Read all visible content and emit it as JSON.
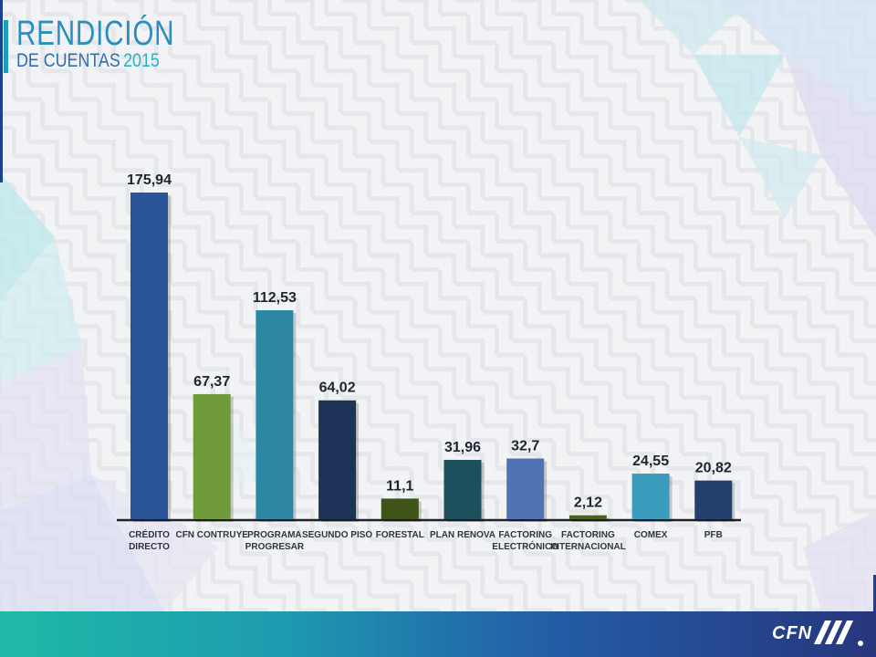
{
  "slide": {
    "title_line1": "RENDICIÓN",
    "title_line2a": "DE CUENTAS",
    "title_line2b": "2015"
  },
  "footer": {
    "logo_text": "CFN",
    "colors": [
      "#20b9a7",
      "#235ea7",
      "#27367d"
    ]
  },
  "chart_data": {
    "type": "bar",
    "categories": [
      "CRÉDITO DIRECTO",
      "CFN CONTRUYE",
      "PROGRAMA PROGRESAR",
      "SEGUNDO PISO",
      "FORESTAL",
      "PLAN RENOVA",
      "FACTORING ELECTRÓNICO",
      "FACTORING INTERNACIONAL",
      "COMEX",
      "PFB"
    ],
    "category_lines": [
      [
        "CRÉDITO",
        "DIRECTO"
      ],
      [
        "CFN CONTRUYE"
      ],
      [
        "PROGRAMA",
        "PROGRESAR"
      ],
      [
        "SEGUNDO PISO"
      ],
      [
        "FORESTAL"
      ],
      [
        "PLAN RENOVA"
      ],
      [
        "FACTORING",
        "ELECTRÓNICO"
      ],
      [
        "FACTORING",
        "INTERNACIONAL"
      ],
      [
        "COMEX"
      ],
      [
        "PFB"
      ]
    ],
    "values": [
      175.94,
      67.37,
      112.53,
      64.02,
      11.1,
      31.96,
      32.7,
      2.12,
      24.55,
      20.82
    ],
    "value_labels": [
      "175,94",
      "67,37",
      "112,53",
      "64,02",
      "11,1",
      "31,96",
      "32,7",
      "2,12",
      "24,55",
      "20,82"
    ],
    "colors": [
      "#2a5498",
      "#6f9a3a",
      "#2d86a3",
      "#1d3358",
      "#3e5418",
      "#1e4f5d",
      "#4f73b3",
      "#4c6320",
      "#3a9bbd",
      "#24416e"
    ],
    "ylim": [
      0,
      180
    ],
    "grid": false,
    "legend": "none",
    "title": "",
    "xlabel": "",
    "ylabel": ""
  }
}
